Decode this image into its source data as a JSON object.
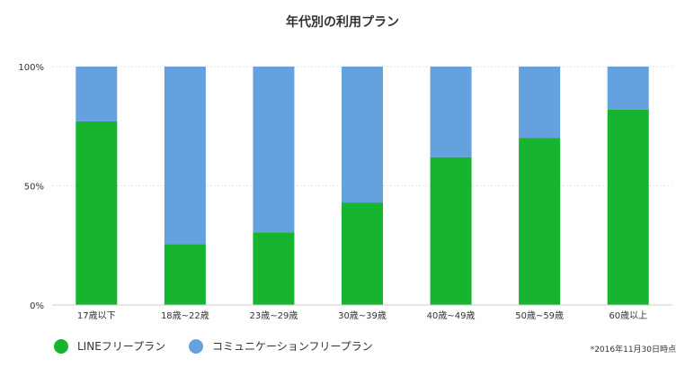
{
  "chart_data": {
    "type": "bar",
    "stacked": true,
    "title": "年代別の利用プラン",
    "categories": [
      "17歳以下",
      "18歳~22歳",
      "23歳~29歳",
      "30歳~39歳",
      "40歳~49歳",
      "50歳~59歳",
      "60歳以上"
    ],
    "series": [
      {
        "name": "LINEフリープラン",
        "color": "#16b42f",
        "values": [
          77,
          25.5,
          30.5,
          43,
          62,
          70,
          82
        ]
      },
      {
        "name": "コミュニケーションフリープラン",
        "color": "#65a1de",
        "values": [
          23,
          74.5,
          69.5,
          57,
          38,
          30,
          18
        ]
      }
    ],
    "y_ticks": [
      "0%",
      "50%",
      "100%"
    ],
    "ylim": [
      0,
      100
    ],
    "grid": true,
    "legend": "bottom-left",
    "footnote": "*2016年11月30日時点"
  }
}
